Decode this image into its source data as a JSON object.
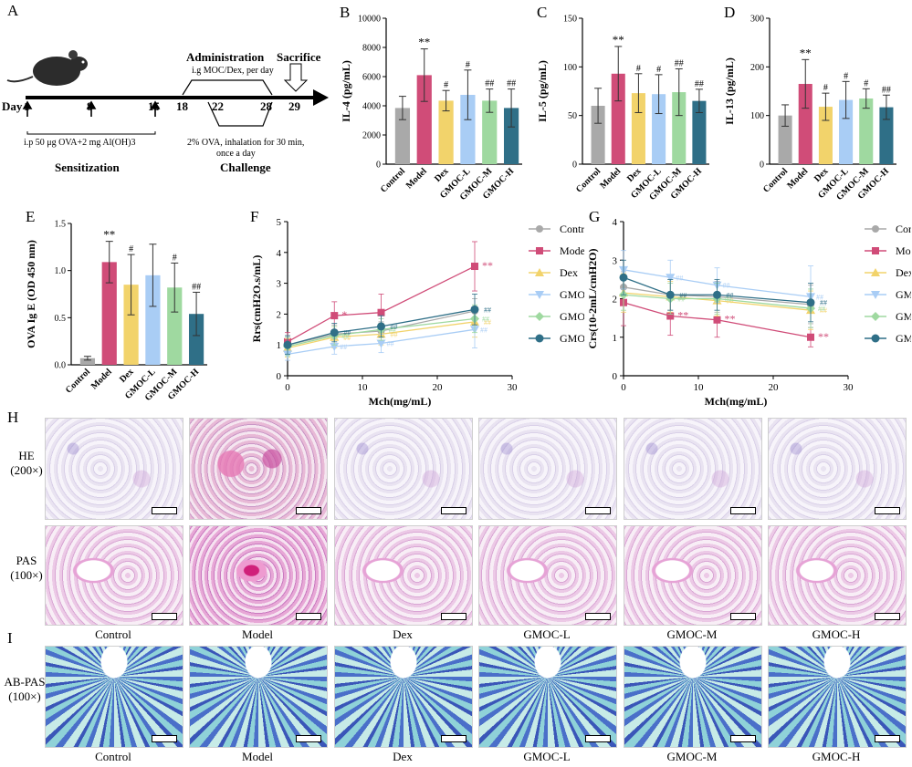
{
  "panel_labels": {
    "a": "A",
    "b": "B",
    "c": "C",
    "d": "D",
    "e": "E",
    "f": "F",
    "g": "G",
    "h": "H",
    "i": "I"
  },
  "timeline": {
    "administration": "Administration",
    "administration_detail": "i.g MOC/Dex, per day",
    "sacrifice": "Sacrifice",
    "day_label": "Day",
    "days_top": [
      "1",
      "8",
      "15"
    ],
    "days_mid": [
      "18",
      "22",
      "28",
      "29"
    ],
    "sensitization_detail": "i.p 50 μg OVA+2 mg Al(OH)3",
    "sensitization": "Sensitization",
    "challenge_detail_1": "2% OVA, inhalation for 30 min,",
    "challenge_detail_2": "once a day",
    "challenge": "Challenge"
  },
  "groups": [
    "Control",
    "Model",
    "Dex",
    "GMOC-L",
    "GMOC-M",
    "GMOC-H"
  ],
  "colors": {
    "Control": "#a9a9a9",
    "Model": "#d04c78",
    "Dex": "#f2d36b",
    "GMOC-L": "#a9cdf5",
    "GMOC-M": "#9fd9a0",
    "GMOC-H": "#2f6f87"
  },
  "chart_data": [
    {
      "id": "B",
      "type": "bar",
      "ylabel": "IL-4 (pg/mL)",
      "ylim": [
        0,
        10000
      ],
      "yticks": [
        "0",
        "2000",
        "4000",
        "6000",
        "8000",
        "10000"
      ],
      "categories": [
        "Control",
        "Model",
        "Dex",
        "GMOC-L",
        "GMOC-M",
        "GMOC-H"
      ],
      "values": [
        3850,
        6100,
        4350,
        4750,
        4350,
        3850
      ],
      "errors": [
        800,
        1800,
        700,
        1700,
        800,
        1300
      ],
      "annotations": [
        "",
        "**",
        "#",
        "#",
        "##",
        "##"
      ]
    },
    {
      "id": "C",
      "type": "bar",
      "ylabel": "IL-5 (pg/mL)",
      "ylim": [
        0,
        150
      ],
      "yticks": [
        "0",
        "50",
        "100",
        "150"
      ],
      "categories": [
        "Control",
        "Model",
        "Dex",
        "GMOC-L",
        "GMOC-M",
        "GMOC-H"
      ],
      "values": [
        60,
        93,
        73,
        72,
        74,
        65
      ],
      "errors": [
        18,
        28,
        20,
        20,
        24,
        12
      ],
      "annotations": [
        "",
        "**",
        "#",
        "#",
        "##",
        "##"
      ]
    },
    {
      "id": "D",
      "type": "bar",
      "ylabel": "IL-13 (pg/mL)",
      "ylim": [
        0,
        300
      ],
      "yticks": [
        "0",
        "100",
        "200",
        "300"
      ],
      "categories": [
        "Control",
        "Model",
        "Dex",
        "GMOC-L",
        "GMOC-M",
        "GMOC-H"
      ],
      "values": [
        100,
        165,
        118,
        132,
        135,
        117
      ],
      "errors": [
        22,
        50,
        28,
        38,
        20,
        25
      ],
      "annotations": [
        "",
        "**",
        "#",
        "#",
        "#",
        "##"
      ]
    },
    {
      "id": "E",
      "type": "bar",
      "ylabel": "OVA Ig E (OD 450 nm)",
      "ylim": [
        0,
        1.5
      ],
      "yticks": [
        "0.0",
        "0.5",
        "1.0",
        "1.5"
      ],
      "categories": [
        "Control",
        "Model",
        "Dex",
        "GMOC-L",
        "GMOC-M",
        "GMOC-H"
      ],
      "values": [
        0.07,
        1.09,
        0.85,
        0.95,
        0.82,
        0.54
      ],
      "errors": [
        0.02,
        0.22,
        0.32,
        0.33,
        0.26,
        0.23
      ],
      "annotations": [
        "",
        "**",
        "#",
        "",
        "#",
        "##"
      ]
    },
    {
      "id": "F",
      "type": "line",
      "xlabel": "Mch(mg/mL)",
      "ylabel": "Rrs(cmH2O.s/mL)",
      "xlim": [
        0,
        30
      ],
      "ylim": [
        0,
        5
      ],
      "xticks": [
        "0",
        "10",
        "20",
        "30"
      ],
      "yticks": [
        "0",
        "1",
        "2",
        "3",
        "4",
        "5"
      ],
      "x": [
        0,
        6.25,
        12.5,
        25
      ],
      "series": [
        {
          "name": "Control",
          "values": [
            1.0,
            1.35,
            1.45,
            2.1
          ],
          "errors": [
            0.3,
            0.3,
            0.3,
            0.4
          ],
          "marker": "circle"
        },
        {
          "name": "Model",
          "values": [
            1.1,
            1.95,
            2.05,
            3.55
          ],
          "errors": [
            0.3,
            0.45,
            0.6,
            0.8
          ],
          "marker": "square",
          "ann": [
            "",
            "*",
            "",
            "**"
          ]
        },
        {
          "name": "Dex",
          "values": [
            0.9,
            1.25,
            1.35,
            1.75
          ],
          "errors": [
            0.3,
            0.35,
            0.35,
            0.5
          ],
          "marker": "triangle-up",
          "ann": [
            "",
            "##",
            "##",
            "##"
          ]
        },
        {
          "name": "GMOC-L",
          "values": [
            0.7,
            0.95,
            1.05,
            1.5
          ],
          "errors": [
            0.2,
            0.25,
            0.3,
            0.6
          ],
          "marker": "triangle-down",
          "ann": [
            "",
            "##",
            "##",
            "##"
          ]
        },
        {
          "name": "GMOC-M",
          "values": [
            0.95,
            1.3,
            1.5,
            1.85
          ],
          "errors": [
            0.3,
            0.3,
            0.35,
            0.45
          ],
          "marker": "diamond",
          "ann": [
            "",
            "##",
            "##",
            "##"
          ]
        },
        {
          "name": "GMOC-H",
          "values": [
            1.0,
            1.4,
            1.6,
            2.15
          ],
          "errors": [
            0.3,
            0.3,
            0.35,
            0.5
          ],
          "marker": "hexagon",
          "ann": [
            "",
            "##",
            "##",
            "##"
          ]
        }
      ]
    },
    {
      "id": "G",
      "type": "line",
      "xlabel": "Mch(mg/mL)",
      "ylabel": "Crs(10-2mL/cmH2O)",
      "xlim": [
        0,
        30
      ],
      "ylim": [
        0,
        4
      ],
      "xticks": [
        "0",
        "10",
        "20",
        "30"
      ],
      "yticks": [
        "0",
        "1",
        "2",
        "3",
        "4"
      ],
      "x": [
        0,
        6.25,
        12.5,
        25
      ],
      "series": [
        {
          "name": "Control",
          "values": [
            2.3,
            2.1,
            2.05,
            1.85
          ],
          "errors": [
            0.4,
            0.4,
            0.4,
            0.5
          ],
          "marker": "circle"
        },
        {
          "name": "Model",
          "values": [
            1.9,
            1.55,
            1.45,
            1.0
          ],
          "errors": [
            0.6,
            0.5,
            0.45,
            0.25
          ],
          "marker": "square",
          "ann": [
            "",
            "**",
            "**",
            "**"
          ]
        },
        {
          "name": "Dex",
          "values": [
            2.15,
            2.05,
            1.95,
            1.7
          ],
          "errors": [
            0.5,
            0.4,
            0.4,
            0.5
          ],
          "marker": "triangle-up",
          "ann": [
            "",
            "##",
            "##",
            "##"
          ]
        },
        {
          "name": "GMOC-L",
          "values": [
            2.75,
            2.55,
            2.35,
            2.05
          ],
          "errors": [
            0.5,
            0.45,
            0.45,
            0.8
          ],
          "marker": "triangle-down",
          "ann": [
            "",
            "##",
            "##",
            "##"
          ]
        },
        {
          "name": "GMOC-M",
          "values": [
            2.1,
            2.0,
            2.0,
            1.75
          ],
          "errors": [
            0.4,
            0.4,
            0.4,
            0.5
          ],
          "marker": "diamond",
          "ann": [
            "",
            "##",
            "##",
            "##"
          ]
        },
        {
          "name": "GMOC-H",
          "values": [
            2.55,
            2.1,
            2.1,
            1.9
          ],
          "errors": [
            0.45,
            0.4,
            0.4,
            0.5
          ],
          "marker": "hexagon",
          "ann": [
            "",
            "##",
            "##",
            "##"
          ]
        }
      ]
    }
  ],
  "histology": {
    "he_label_1": "HE",
    "he_label_2": "(200×)",
    "pas_label_1": "PAS",
    "pas_label_2": "(100×)",
    "abpas_label_1": "AB-PAS",
    "abpas_label_2": "(100×)",
    "captions": [
      "Control",
      "Model",
      "Dex",
      "GMOC-L",
      "GMOC-M",
      "GMOC-H"
    ],
    "captions_i": [
      "Control",
      "Model",
      "Dex",
      "GMOC-L",
      "GMOC-M",
      "GMOC-H"
    ]
  }
}
